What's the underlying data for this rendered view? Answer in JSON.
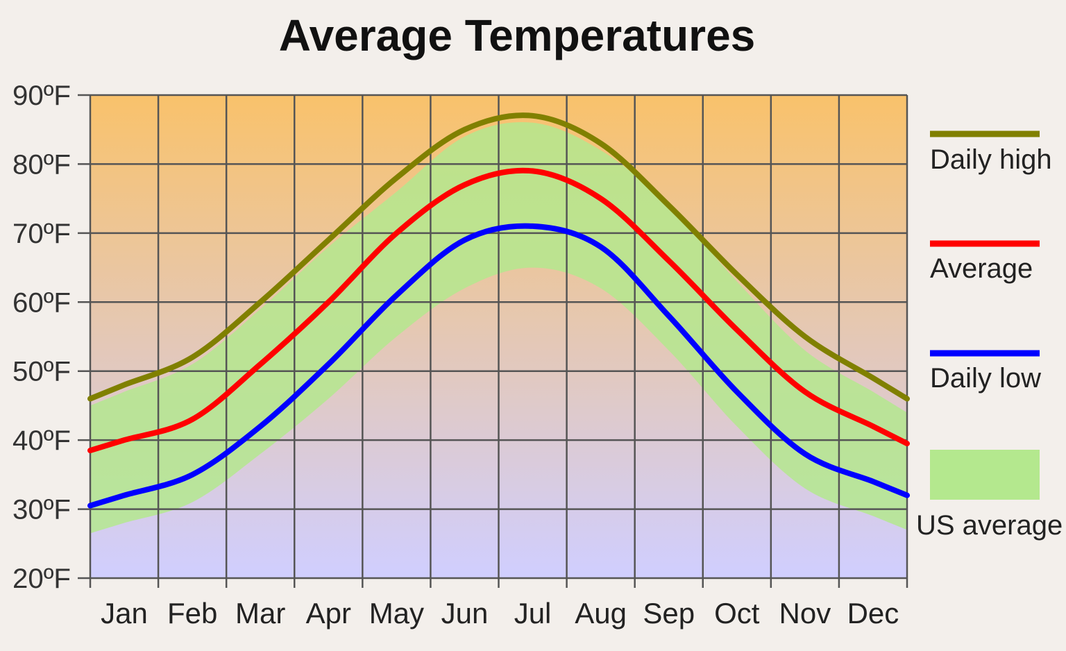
{
  "chart_data": {
    "type": "line",
    "title": "Average Temperatures",
    "xlabel": "",
    "ylabel": "",
    "ylim": [
      20,
      90
    ],
    "y_ticks": [
      "90ºF",
      "80ºF",
      "70ºF",
      "60ºF",
      "50ºF",
      "40ºF",
      "30ºF",
      "20ºF"
    ],
    "y_tick_values": [
      90,
      80,
      70,
      60,
      50,
      40,
      30,
      20
    ],
    "categories": [
      "Jan",
      "Feb",
      "Mar",
      "Apr",
      "May",
      "Jun",
      "Jul",
      "Aug",
      "Sep",
      "Oct",
      "Nov",
      "Dec"
    ],
    "grid": true,
    "legend_position": "right",
    "series": [
      {
        "name": "Daily high",
        "color": "#808000",
        "values": [
          48,
          52,
          60,
          69,
          78,
          85,
          87,
          83,
          74,
          64,
          55,
          49
        ]
      },
      {
        "name": "Average",
        "color": "#ff0000",
        "values": [
          40,
          43,
          51,
          60,
          70,
          77,
          79,
          75,
          66,
          56,
          47,
          42
        ]
      },
      {
        "name": "Daily low",
        "color": "#0000ff",
        "values": [
          32,
          35,
          42,
          51,
          61,
          69,
          71,
          68,
          58,
          47,
          38,
          34
        ]
      }
    ],
    "band": {
      "name": "US average",
      "color": "#b4e88e",
      "upper": [
        47,
        51,
        59,
        68,
        76,
        84,
        86,
        82,
        74,
        63,
        53,
        47
      ],
      "lower": [
        28,
        31,
        38,
        46,
        55,
        62,
        65,
        62,
        53,
        42,
        33,
        29
      ]
    },
    "background_gradient": {
      "top": "#f9c26b",
      "bottom": "#d0ceff"
    }
  }
}
